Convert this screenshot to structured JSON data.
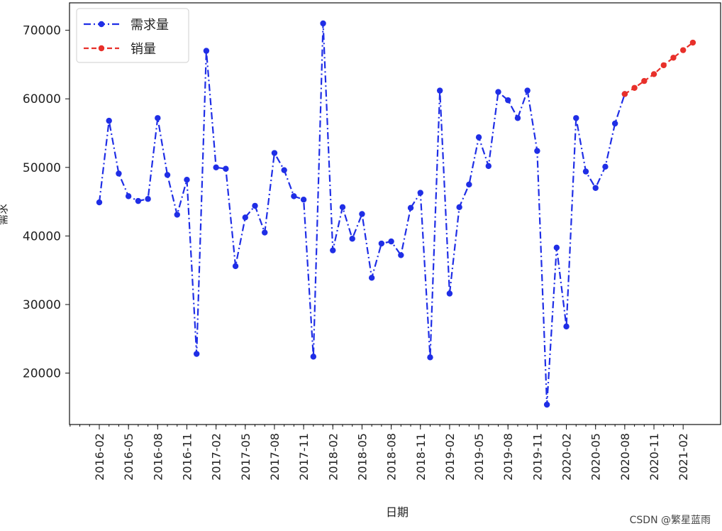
{
  "chart_data": {
    "type": "line",
    "xlabel": "日期",
    "ylabel": "需求",
    "ylim": [
      12500,
      74000
    ],
    "yticks": [
      20000,
      30000,
      40000,
      50000,
      60000,
      70000
    ],
    "xtick_labels": [
      "2016-02",
      "2016-05",
      "2016-08",
      "2016-11",
      "2017-02",
      "2017-05",
      "2017-08",
      "2017-11",
      "2018-02",
      "2018-05",
      "2018-08",
      "2018-11",
      "2019-02",
      "2019-05",
      "2019-08",
      "2019-11",
      "2020-02",
      "2020-05",
      "2020-08",
      "2020-11",
      "2021-02"
    ],
    "legend_position": "top-left",
    "grid": false,
    "series": [
      {
        "name": "需求量",
        "color": "#1f2ee6",
        "style": "dash-dot",
        "marker": "circle",
        "x": [
          "2016-02",
          "2016-03",
          "2016-04",
          "2016-05",
          "2016-06",
          "2016-07",
          "2016-08",
          "2016-09",
          "2016-10",
          "2016-11",
          "2016-12",
          "2017-01",
          "2017-02",
          "2017-03",
          "2017-04",
          "2017-05",
          "2017-06",
          "2017-07",
          "2017-08",
          "2017-09",
          "2017-10",
          "2017-11",
          "2017-12",
          "2018-01",
          "2018-02",
          "2018-03",
          "2018-04",
          "2018-05",
          "2018-06",
          "2018-07",
          "2018-08",
          "2018-09",
          "2018-10",
          "2018-11",
          "2018-12",
          "2019-01",
          "2019-02",
          "2019-03",
          "2019-04",
          "2019-05",
          "2019-06",
          "2019-07",
          "2019-08",
          "2019-09",
          "2019-10",
          "2019-11",
          "2019-12",
          "2020-01",
          "2020-02",
          "2020-03",
          "2020-04",
          "2020-05",
          "2020-06",
          "2020-07",
          "2020-08"
        ],
        "values": [
          44900,
          56800,
          49100,
          45800,
          45100,
          45400,
          57200,
          48900,
          43100,
          48200,
          22800,
          67000,
          50000,
          49800,
          35600,
          42700,
          44400,
          40500,
          52100,
          49600,
          45800,
          45300,
          22400,
          71000,
          37900,
          44200,
          39600,
          43200,
          33900,
          38900,
          39200,
          37200,
          44100,
          46300,
          22300,
          61200,
          31600,
          44200,
          47500,
          54400,
          50200,
          61000,
          59800,
          57200,
          61200,
          52400,
          15400,
          38300,
          26800,
          57200,
          49400,
          47000,
          50100,
          56400,
          60700
        ]
      },
      {
        "name": "销量",
        "color": "#e8302a",
        "style": "dashed",
        "marker": "circle",
        "x": [
          "2020-08",
          "2020-09",
          "2020-10",
          "2020-11",
          "2020-12",
          "2021-01",
          "2021-02",
          "2021-03"
        ],
        "values": [
          60700,
          61600,
          62600,
          63600,
          64900,
          66000,
          67100,
          68200
        ]
      }
    ]
  },
  "watermark": "CSDN @繁星蓝雨"
}
